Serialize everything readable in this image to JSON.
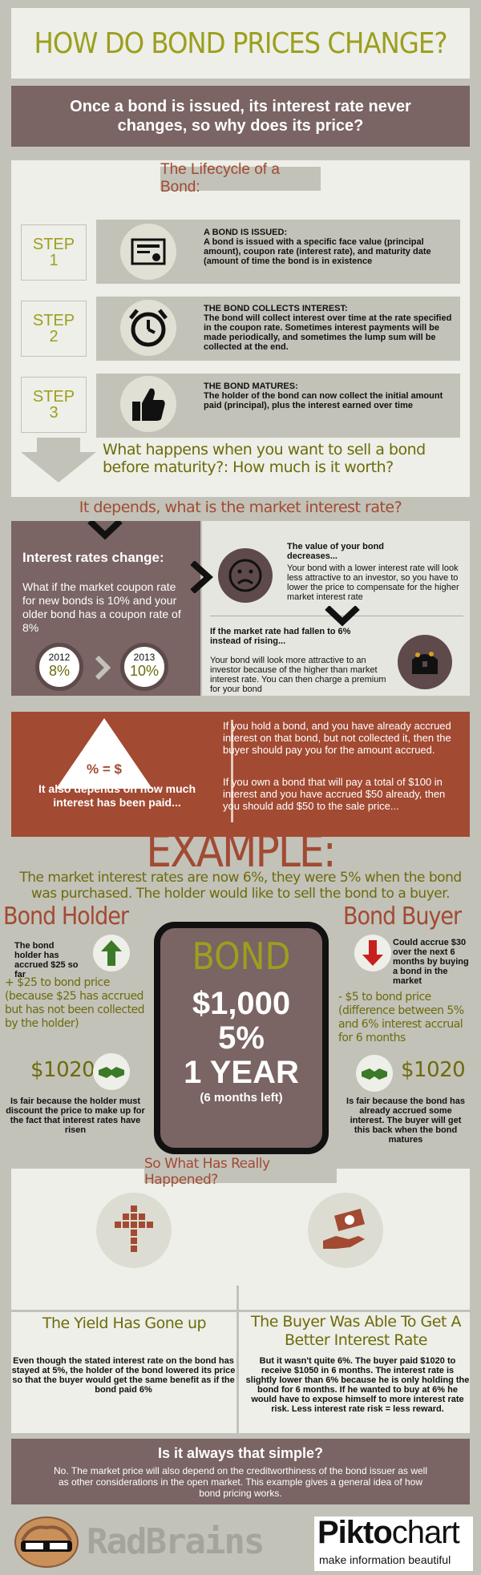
{
  "title": "HOW DO BOND PRICES CHANGE?",
  "subtitle": "Once a bond is issued, its interest rate never changes, so why does its price?",
  "lifecycle": {
    "title": "The Lifecycle of a Bond:",
    "steps": [
      {
        "label_line1": "STEP",
        "label_line2": "1",
        "heading": "A BOND IS ISSUED:",
        "text": "A bond is issued with a specific face value (principal amount), coupon rate (interest rate), and maturity date (amount of time the bond is in existence",
        "icon": "certificate-icon"
      },
      {
        "label_line1": "STEP",
        "label_line2": "2",
        "heading": "THE BOND COLLECTS INTEREST:",
        "text": "The bond will collect interest over time at the rate specified in the coupon rate. Sometimes interest payments will be made periodically, and sometimes the lump sum will be collected at the end.",
        "icon": "alarm-clock-icon"
      },
      {
        "label_line1": "STEP",
        "label_line2": "3",
        "heading": "THE BOND MATURES:",
        "text": "The holder of the bond can now collect the initial amount paid (principal), plus the interest earned over time",
        "icon": "thumbs-up-icon"
      }
    ],
    "question": "What happens when you want to sell a bond before maturity?: How much is it worth?"
  },
  "depends": "It depends, what is the market interest rate?",
  "rates": {
    "heading": "Interest rates change:",
    "text": "What if the market coupon rate for new bonds is 10% and your older bond has a coupon rate of 8%",
    "year1": "2012",
    "rate1": "8%",
    "year2": "2013",
    "rate2": "10%",
    "decrease_heading": "The value of your bond decreases...",
    "decrease_text": "Your bond with a lower interest rate will look less attractive to an investor, so you have to lower the price to compensate for the higher market interest rate",
    "fallen_heading": "If the market rate had fallen to 6% instead of rising...",
    "fallen_text": "Your bond will look more attractive to an investor because of the higher than market interest rate. You can then charge a premium for your bond"
  },
  "accrued": {
    "formula": "% = $",
    "heading": "It also depends on how much interest has been paid...",
    "p1": "If you hold a bond, and you have already accrued interest on that bond, but not collected it, then the buyer should pay you for the amount accrued.",
    "p2": "If you own a bond that will pay a total of $100 in interest and you have accrued $50 already, then you should add $50 to the sale price..."
  },
  "example": {
    "title": "EXAMPLE:",
    "intro": "The market interest rates are now 6%, they were 5% when the bond was purchased. The holder would like to sell the bond to a buyer.",
    "holder": {
      "title": "Bond Holder",
      "accrued": "The bond holder has accrued $25 so far",
      "adjust": "+ $25 to bond price (because $25 has accrued but has not been collected by the holder)",
      "price": "$1020",
      "note": "Is fair because the holder must discount the price to make up for the fact that interest rates have risen"
    },
    "buyer": {
      "title": "Bond Buyer",
      "accrue": "Could accrue $30 over the next 6 months by buying a bond in the market",
      "adjust": "- $5 to bond price (difference between 5% and 6% interest accrual for 6 months",
      "price": "$1020",
      "note": "Is fair because the bond has already accrued some interest. The buyer will get this back when the bond matures"
    },
    "bond": {
      "label": "BOND",
      "amount": "$1,000",
      "rate": "5%",
      "term": "1 YEAR",
      "left": "(6 months left)"
    }
  },
  "happened": {
    "title": "So What Has Really Happened?",
    "left_heading": "The Yield Has Gone up",
    "left_text": "Even though the stated interest rate on the bond has stayed at 5%, the holder of the bond lowered its price so that the buyer would get the same benefit as if the bond paid 6%",
    "right_heading": "The Buyer Was Able To Get A Better Interest Rate",
    "right_text": "But it wasn't quite 6%. The buyer paid $1020 to receive $1050 in 6 months. The interest rate is slightly lower than 6% because he is only holding the bond for 6 months. If he wanted to buy at 6% he would have to expose himself to more interest rate risk. Less interest rate risk = less reward."
  },
  "simple": {
    "heading": "Is it always that simple?",
    "text": "No. The market price will also depend on the creditworthiness of the bond issuer as well as other considerations in the open market. This example gives a general idea of how bond pricing works."
  },
  "footer": {
    "brand": "RadBrains",
    "pikto_a": "Pikto",
    "pikto_b": "chart",
    "tagline": "make information beautiful"
  },
  "colors": {
    "olive": "#9c9f1e",
    "mauve": "#7a6464",
    "rust": "#a24a32",
    "cream": "#eeefe8",
    "gray": "#c2c2b9"
  }
}
